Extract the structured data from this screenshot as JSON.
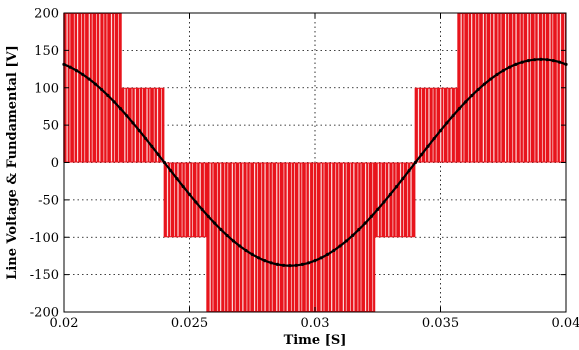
{
  "chart_data": {
    "type": "line",
    "xlabel": "Time [S]",
    "ylabel": "Line Voltage & Fundamental [V]",
    "xlim": [
      0.02,
      0.04
    ],
    "ylim": [
      -200,
      200
    ],
    "xticks": [
      0.02,
      0.025,
      0.03,
      0.035,
      0.04
    ],
    "xtick_labels": [
      "0.02",
      "0.025",
      "0.03",
      "0.035",
      "0.04"
    ],
    "yticks": [
      -200,
      -150,
      -100,
      -50,
      0,
      50,
      100,
      150,
      200
    ],
    "ytick_labels": [
      "-200",
      "-150",
      "-100",
      "-50",
      "0",
      "50",
      "100",
      "150",
      "200"
    ],
    "grid": true,
    "series": [
      {
        "color": "#e8141c",
        "style": "pwm-step",
        "segments": [
          {
            "x": [
              0.02,
              0.0223
            ],
            "low": 0,
            "high": 200
          },
          {
            "x": [
              0.0223,
              0.024
            ],
            "low": 0,
            "high": 100
          },
          {
            "x": [
              0.024,
              0.0257
            ],
            "low": -100,
            "high": 0
          },
          {
            "x": [
              0.0257,
              0.0324
            ],
            "low": -200,
            "high": 0
          },
          {
            "x": [
              0.0324,
              0.034
            ],
            "low": -100,
            "high": 0
          },
          {
            "x": [
              0.034,
              0.0357
            ],
            "low": 0,
            "high": 100
          },
          {
            "x": [
              0.0357,
              0.04
            ],
            "low": 0,
            "high": 200
          }
        ]
      },
      {
        "color": "#000000",
        "style": "sine",
        "amplitude": 138,
        "frequency_hz": 50,
        "zero_crossing_x": 0.024,
        "polarity": -1
      }
    ]
  }
}
